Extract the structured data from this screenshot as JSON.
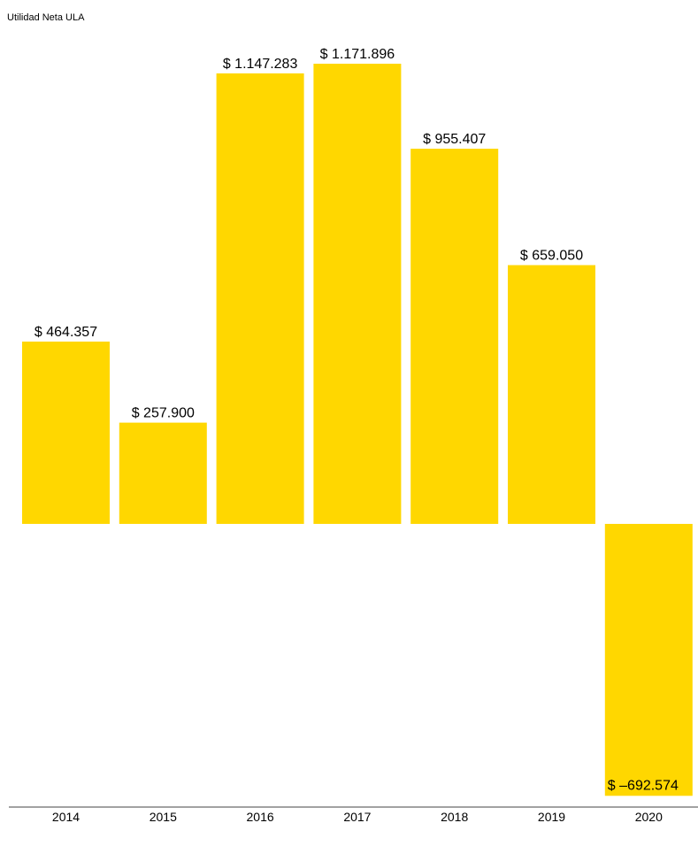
{
  "chart_data": {
    "type": "bar",
    "title": "Utilidad Neta ULA",
    "xlabel": "",
    "ylabel": "",
    "categories": [
      "2014",
      "2015",
      "2016",
      "2017",
      "2018",
      "2019",
      "2020"
    ],
    "values": [
      464357,
      257900,
      1147283,
      1171896,
      955407,
      659050,
      -692574
    ],
    "data_labels": [
      "$ 464.357",
      "$ 257.900",
      "$ 1.147.283",
      "$ 1.171.896",
      "$ 955.407",
      "$ 659.050",
      "$ –692.574"
    ],
    "ylim": [
      -692574,
      1171896
    ],
    "grid": false,
    "legend": "none",
    "bar_color": "#FFD700",
    "axis_color": "#444444"
  }
}
